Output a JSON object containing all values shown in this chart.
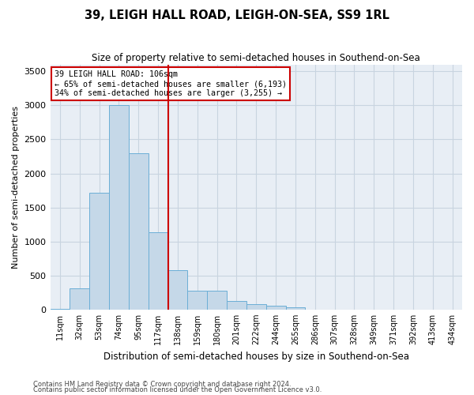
{
  "title": "39, LEIGH HALL ROAD, LEIGH-ON-SEA, SS9 1RL",
  "subtitle": "Size of property relative to semi-detached houses in Southend-on-Sea",
  "xlabel": "Distribution of semi-detached houses by size in Southend-on-Sea",
  "ylabel": "Number of semi-detached properties",
  "footer1": "Contains HM Land Registry data © Crown copyright and database right 2024.",
  "footer2": "Contains public sector information licensed under the Open Government Licence v3.0.",
  "annotation_title": "39 LEIGH HALL ROAD: 106sqm",
  "annotation_line1": "← 65% of semi-detached houses are smaller (6,193)",
  "annotation_line2": "34% of semi-detached houses are larger (3,255) →",
  "bar_labels": [
    "11sqm",
    "32sqm",
    "53sqm",
    "74sqm",
    "95sqm",
    "117sqm",
    "138sqm",
    "159sqm",
    "180sqm",
    "201sqm",
    "222sqm",
    "244sqm",
    "265sqm",
    "286sqm",
    "307sqm",
    "328sqm",
    "349sqm",
    "371sqm",
    "392sqm",
    "413sqm",
    "434sqm"
  ],
  "bar_values": [
    5,
    310,
    1720,
    3000,
    2300,
    1130,
    580,
    275,
    275,
    125,
    75,
    55,
    35,
    0,
    0,
    0,
    0,
    0,
    0,
    0,
    0
  ],
  "bar_color": "#c5d8e8",
  "bar_edge_color": "#6baed6",
  "red_line_x": 5.5,
  "ylim": [
    0,
    3600
  ],
  "yticks": [
    0,
    500,
    1000,
    1500,
    2000,
    2500,
    3000,
    3500
  ],
  "grid_color": "#c8d4e0",
  "bg_color": "#e8eef5",
  "annotation_box_color": "#ffffff",
  "annotation_box_edge": "#cc0000",
  "red_line_color": "#cc0000"
}
